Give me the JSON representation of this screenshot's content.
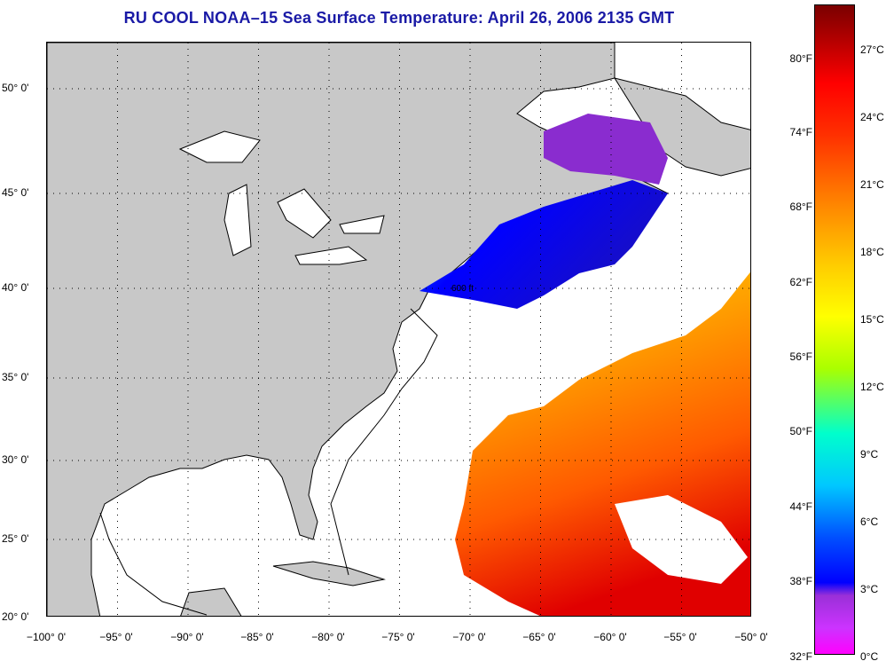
{
  "title": "RU COOL  NOAA–15  Sea Surface Temperature:  April 26, 2006 2135 GMT",
  "map": {
    "lon_range": [
      -100,
      -50
    ],
    "lat_range": [
      20,
      52.5
    ],
    "lon_labels": [
      "−100° 0'",
      "−95° 0'",
      "−90° 0'",
      "−85° 0'",
      "−80° 0'",
      "−75° 0'",
      "−70° 0'",
      "−65° 0'",
      "−60° 0'",
      "−55° 0'",
      "−50° 0'"
    ],
    "lat_labels": [
      "20° 0'",
      "25° 0'",
      "30° 0'",
      "35° 0'",
      "40° 0'",
      "45° 0'",
      "50° 0'"
    ],
    "contour_label": "600 ft",
    "grid": "dotted",
    "land_color": "#c8c8c8",
    "water_color": "#ffffff"
  },
  "colorbar": {
    "fahrenheit": [
      "80°F",
      "74°F",
      "68°F",
      "62°F",
      "56°F",
      "50°F",
      "44°F",
      "38°F",
      "32°F"
    ],
    "celsius": [
      "27°C",
      "24°C",
      "21°C",
      "18°C",
      "15°C",
      "12°C",
      "9°C",
      "6°C",
      "3°C",
      "0°C"
    ],
    "colors": [
      "#ff00ff",
      "#9a30d8",
      "#0000ff",
      "#00c8ff",
      "#aaff00",
      "#ffff00",
      "#ff8000",
      "#ff0000",
      "#7a0000"
    ]
  }
}
